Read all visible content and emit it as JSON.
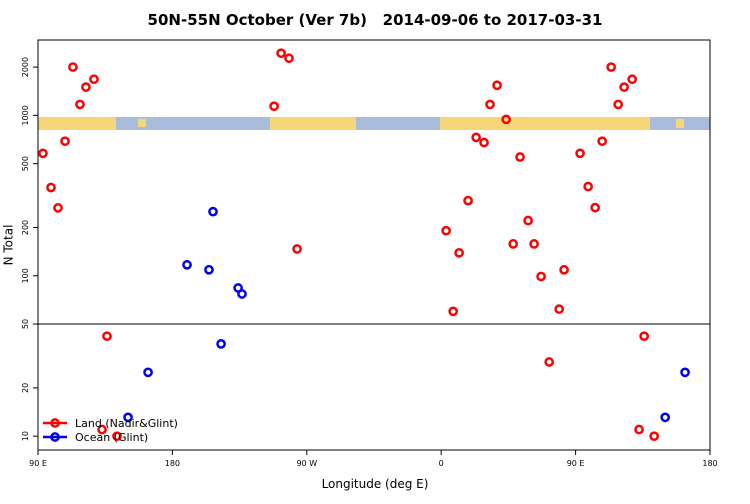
{
  "chart_data": {
    "type": "scatter",
    "title": "50N-55N October (Ver 7b)   2014-09-06 to 2017-03-31",
    "x_label": "Longitude (deg E)",
    "y_label": "N Total",
    "log_y": true,
    "legend_position": "bottom-left",
    "reference_line": 50,
    "xlim": [
      90,
      540
    ],
    "xticks": [
      {
        "value": 90,
        "label": "90 E"
      },
      180,
      {
        "value": 270,
        "label": "90 W"
      },
      {
        "value": 360,
        "label": "0"
      },
      {
        "value": 450,
        "label": "90 E"
      },
      {
        "value": 540,
        "label": "180"
      }
    ],
    "ylim": [
      8.2,
      2950
    ],
    "yticks": [
      10,
      20,
      50,
      100,
      200,
      500,
      1000,
      2000
    ],
    "series": [
      {
        "name": "Land (Nadir&Glint)",
        "color": "#ff0000",
        "x": [
          93.3,
          98.7,
          103.4,
          108.1,
          113.4,
          118.1,
          122.1,
          127.5,
          132.9,
          136.2,
          142.9,
          248.1,
          252.8,
          258.1,
          263.5,
          363.3,
          368.0,
          372.0,
          378.0,
          383.4,
          388.7,
          392.7,
          397.4,
          403.5,
          408.2,
          412.8,
          418.2,
          422.2,
          426.9,
          432.3,
          439.0,
          442.3,
          453.0,
          458.4,
          463.1,
          467.8,
          473.8,
          478.5,
          482.5,
          487.9,
          492.5,
          495.9,
          502.6
        ],
        "values": [
          580,
          355,
          265,
          690,
          2000,
          1170,
          1500,
          1680,
          11,
          42,
          10,
          1140,
          2440,
          2270,
          147,
          191,
          60,
          139,
          294,
          729,
          677,
          1170,
          1540,
          944,
          158,
          550,
          221,
          158,
          99,
          29,
          62,
          109,
          580,
          360,
          266,
          690,
          2000,
          1170,
          1500,
          1680,
          11,
          42,
          10
        ]
      },
      {
        "name": "Ocean (Glint)",
        "color": "#0000ee",
        "x": [
          150.3,
          163.7,
          189.8,
          204.5,
          207.2,
          212.6,
          224.0,
          226.6,
          510.0,
          523.3
        ],
        "values": [
          13.1,
          25,
          117,
          109,
          251,
          37.6,
          84,
          77,
          13.1,
          25
        ]
      }
    ]
  }
}
